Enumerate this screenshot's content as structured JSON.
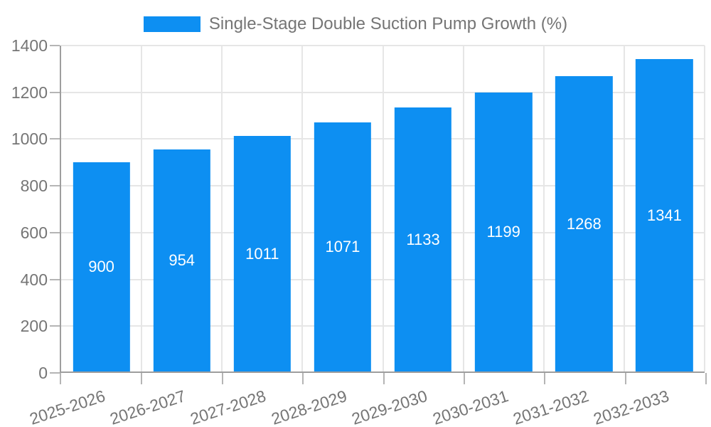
{
  "legend": {
    "label": "Single-Stage Double Suction Pump Growth (%)"
  },
  "colors": {
    "bar": "#0d8ff2",
    "grid": "#e6e6e6",
    "axis": "#9e9e9e",
    "tick": "#b5b5b5",
    "axis_label": "#757575",
    "value_label": "#ffffff",
    "background": "#ffffff"
  },
  "chart_data": {
    "type": "bar",
    "title": "Single-Stage Double Suction Pump Growth (%)",
    "categories": [
      "2025-2026",
      "2026-2027",
      "2027-2028",
      "2028-2029",
      "2029-2030",
      "2030-2031",
      "2031-2032",
      "2032-2033"
    ],
    "values": [
      900,
      954,
      1011,
      1071,
      1133,
      1199,
      1268,
      1341
    ],
    "series": [
      {
        "name": "Single-Stage Double Suction Pump Growth (%)",
        "values": [
          900,
          954,
          1011,
          1071,
          1133,
          1199,
          1268,
          1341
        ]
      }
    ],
    "xlabel": "",
    "ylabel": "",
    "ylim": [
      0,
      1400
    ],
    "yticks": [
      0,
      200,
      400,
      600,
      800,
      1000,
      1200,
      1400
    ],
    "grid": true,
    "legend_position": "top-center",
    "bar_labels": true,
    "bar_label_position": "middle",
    "x_label_rotation_deg": -18
  }
}
